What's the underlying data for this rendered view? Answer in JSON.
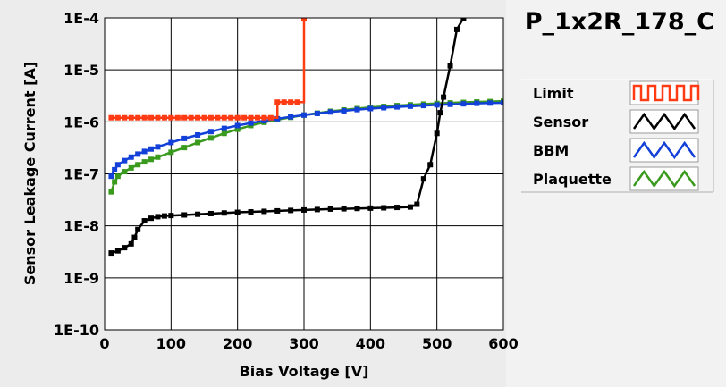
{
  "chart_data": {
    "type": "line",
    "title": "P_1x2R_178_C",
    "xlabel": "Bias Voltage [V]",
    "ylabel": "Sensor Leakage Current [A]",
    "xlim": [
      0,
      600
    ],
    "ylim": [
      1e-10,
      0.0001
    ],
    "y_scale": "log",
    "grid": true,
    "legend_position": "right",
    "x_ticks": [
      "0",
      "100",
      "200",
      "300",
      "400",
      "500",
      "600"
    ],
    "x_tick_values": [
      0,
      100,
      200,
      300,
      400,
      500,
      600
    ],
    "y_ticks": [
      "1E-10",
      "1E-9",
      "1E-8",
      "1E-7",
      "1E-6",
      "1E-5",
      "1E-4"
    ],
    "y_tick_values": [
      1e-10,
      1e-09,
      1e-08,
      1e-07,
      1e-06,
      1e-05,
      0.0001
    ],
    "series": [
      {
        "name": "Limit",
        "color": "#ff3b14",
        "step": true,
        "x": [
          10,
          20,
          30,
          40,
          50,
          60,
          70,
          80,
          90,
          100,
          110,
          120,
          130,
          140,
          150,
          160,
          170,
          180,
          190,
          200,
          210,
          220,
          230,
          240,
          250,
          260,
          270,
          280,
          290,
          300
        ],
        "y": [
          1.2e-06,
          1.2e-06,
          1.2e-06,
          1.2e-06,
          1.2e-06,
          1.2e-06,
          1.2e-06,
          1.2e-06,
          1.2e-06,
          1.2e-06,
          1.2e-06,
          1.2e-06,
          1.2e-06,
          1.2e-06,
          1.2e-06,
          1.2e-06,
          1.2e-06,
          1.2e-06,
          1.2e-06,
          1.2e-06,
          1.2e-06,
          1.2e-06,
          1.2e-06,
          1.2e-06,
          1.2e-06,
          2.4e-06,
          2.4e-06,
          2.4e-06,
          2.4e-06,
          0.0001
        ]
      },
      {
        "name": "Sensor",
        "color": "#000000",
        "x": [
          10,
          20,
          30,
          40,
          45,
          50,
          60,
          70,
          80,
          90,
          100,
          120,
          140,
          160,
          180,
          200,
          220,
          240,
          260,
          280,
          300,
          320,
          340,
          360,
          380,
          400,
          420,
          440,
          460,
          470,
          480,
          490,
          500,
          505,
          510,
          520,
          530,
          540
        ],
        "y": [
          3e-09,
          3.3e-09,
          3.8e-09,
          4.5e-09,
          6e-09,
          8.5e-09,
          1.25e-08,
          1.4e-08,
          1.5e-08,
          1.55e-08,
          1.58e-08,
          1.62e-08,
          1.67e-08,
          1.72e-08,
          1.77e-08,
          1.82e-08,
          1.86e-08,
          1.9e-08,
          1.94e-08,
          1.98e-08,
          2.02e-08,
          2.06e-08,
          2.1e-08,
          2.13e-08,
          2.16e-08,
          2.19e-08,
          2.22e-08,
          2.26e-08,
          2.3e-08,
          2.6e-08,
          8e-08,
          1.5e-07,
          6e-07,
          1.5e-06,
          3e-06,
          1.2e-05,
          6e-05,
          0.0001
        ]
      },
      {
        "name": "BBM",
        "color": "#1240d8",
        "x": [
          10,
          15,
          20,
          30,
          40,
          50,
          60,
          70,
          80,
          100,
          120,
          140,
          160,
          180,
          200,
          220,
          240,
          260,
          280,
          300,
          320,
          340,
          360,
          380,
          400,
          420,
          440,
          460,
          480,
          500,
          520,
          540,
          560,
          580,
          600
        ],
        "y": [
          9e-08,
          1.2e-07,
          1.5e-07,
          1.8e-07,
          2.1e-07,
          2.4e-07,
          2.7e-07,
          3e-07,
          3.3e-07,
          4e-07,
          4.8e-07,
          5.6e-07,
          6.5e-07,
          7.5e-07,
          8.5e-07,
          9.5e-07,
          1.05e-06,
          1.15e-06,
          1.25e-06,
          1.35e-06,
          1.45e-06,
          1.55e-06,
          1.63e-06,
          1.72e-06,
          1.8e-06,
          1.87e-06,
          1.94e-06,
          2e-06,
          2.06e-06,
          2.12e-06,
          2.17e-06,
          2.22e-06,
          2.27e-06,
          2.3e-06,
          2.33e-06
        ]
      },
      {
        "name": "Plaquette",
        "color": "#3a9a1e",
        "x": [
          10,
          15,
          20,
          30,
          40,
          50,
          60,
          70,
          80,
          100,
          120,
          140,
          160,
          180,
          200,
          220,
          240,
          260,
          280,
          300,
          320,
          340,
          360,
          380,
          400,
          420,
          440,
          460,
          480,
          500,
          520,
          540,
          560,
          580,
          600
        ],
        "y": [
          4.5e-08,
          7e-08,
          9e-08,
          1.1e-07,
          1.3e-07,
          1.5e-07,
          1.7e-07,
          1.9e-07,
          2.1e-07,
          2.6e-07,
          3.2e-07,
          4e-07,
          4.9e-07,
          6e-07,
          7.2e-07,
          8.5e-07,
          9.8e-07,
          1.1e-06,
          1.22e-06,
          1.35e-06,
          1.47e-06,
          1.6e-06,
          1.7e-06,
          1.8e-06,
          1.9e-06,
          1.98e-06,
          2.06e-06,
          2.13e-06,
          2.2e-06,
          2.26e-06,
          2.32e-06,
          2.37e-06,
          2.42e-06,
          2.46e-06,
          2.5e-06
        ]
      }
    ]
  }
}
